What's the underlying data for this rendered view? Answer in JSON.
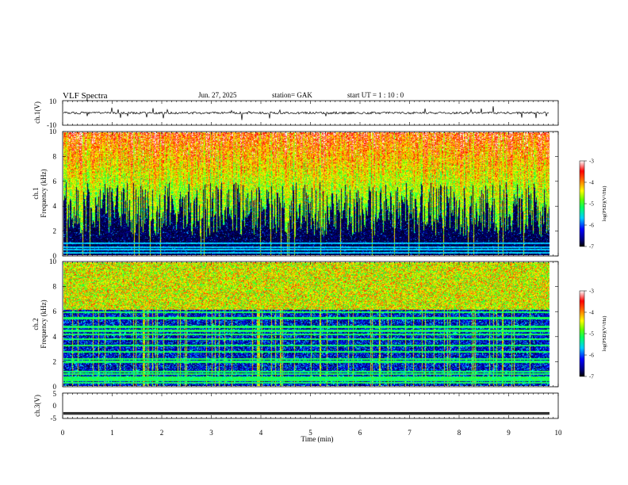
{
  "header": {
    "title": "VLF  Spectra",
    "date": "Jun. 27, 2025",
    "station": "station= GAK",
    "start_ut": "start  UT =   1 : 10 : 0"
  },
  "chart_data": [
    {
      "type": "line",
      "panel": "ch1-waveform",
      "ylabel": "ch.1(V)",
      "ylim": [
        -10,
        10
      ],
      "yticks": [
        10,
        -10
      ],
      "baseline_value": 0
    },
    {
      "type": "heatmap",
      "panel": "ch1-spectrogram",
      "ylabel": "ch.1\nFrequency (kHz)",
      "ylim": [
        0,
        10
      ],
      "yticks": [
        0,
        2,
        4,
        6,
        8,
        10
      ],
      "colorbar": {
        "label": "log(PSD)(V²/Hz)",
        "range": [
          -7,
          -3
        ],
        "ticks": [
          -3,
          -4,
          -5,
          -6,
          -7
        ]
      }
    },
    {
      "type": "heatmap",
      "panel": "ch2-spectrogram",
      "ylabel": "ch.2\nFrequency (kHz)",
      "ylim": [
        0,
        10
      ],
      "yticks": [
        0,
        2,
        4,
        6,
        8,
        10
      ],
      "colorbar": {
        "label": "log(PSD)(V²/Hz)",
        "range": [
          -7,
          -3
        ],
        "ticks": [
          -3,
          -4,
          -5,
          -6,
          -7
        ]
      }
    },
    {
      "type": "line",
      "panel": "ch3-waveform",
      "ylabel": "ch.3(V)",
      "ylim": [
        -5,
        5
      ],
      "yticks": [
        5,
        0,
        -5
      ],
      "baseline_value": -3.0
    }
  ],
  "x_axis": {
    "label": "Time  (min)",
    "range": [
      0,
      10
    ],
    "data_end": 9.82,
    "ticks": [
      "0",
      "1",
      "2",
      "3",
      "4",
      "5",
      "6",
      "7",
      "8",
      "9",
      "10"
    ]
  },
  "colormap": [
    "#000000",
    "#000066",
    "#0000ff",
    "#0099ff",
    "#00ffff",
    "#00ff66",
    "#66ff00",
    "#ffff00",
    "#ff9900",
    "#ff0000",
    "#ffffff"
  ]
}
